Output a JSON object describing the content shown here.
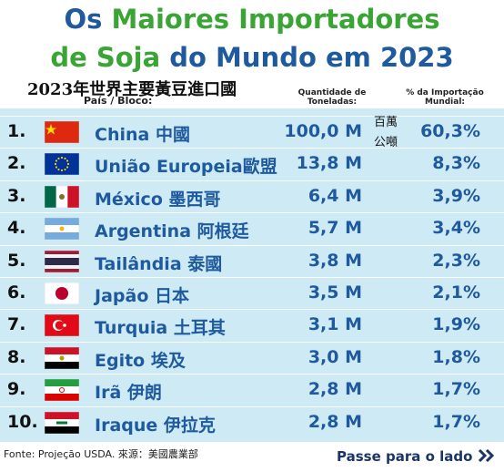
{
  "title": {
    "line1_a": "Os",
    "line1_b": "Maiores Importadores",
    "line2_a": "de Soja",
    "line2_b": "do Mundo em 2023"
  },
  "subtitle": "2023年世界主要黃豆進口國",
  "header": {
    "country": "País / Bloco:",
    "quantity": "Quantidade de Toneladas:",
    "share": "% da Importação Mundial:"
  },
  "unit_note": "百萬 公噸",
  "table": {
    "rows": [
      [
        "1.",
        "China 中國",
        "100,0 M",
        "60,3%"
      ],
      [
        "2.",
        "União Europeia歐盟",
        "13,8 M",
        "8,3%"
      ],
      [
        "3.",
        "México 墨西哥",
        "6,4 M",
        "3,9%"
      ],
      [
        "4.",
        "Argentina 阿根廷",
        "5,7 M",
        "3,4%"
      ],
      [
        "5.",
        "Tailândia 泰國",
        "3,8 M",
        "2,3%"
      ],
      [
        "6.",
        "Japão 日本",
        "3,5 M",
        "2,1%"
      ],
      [
        "7.",
        "Turquia 土耳其",
        "3,1 M",
        "1,9%"
      ],
      [
        "8.",
        "Egito 埃及",
        "3,0 M",
        "1,8%"
      ],
      [
        "9.",
        "Irã 伊朗",
        "2,8 M",
        "1,7%"
      ],
      [
        "10.",
        "Iraque 伊拉克",
        "2,8 M",
        "1,7%"
      ]
    ]
  },
  "footer": {
    "source": "Fonte: Projeção USDA. 來源：美國農業部",
    "next": "Passe para o lado"
  }
}
